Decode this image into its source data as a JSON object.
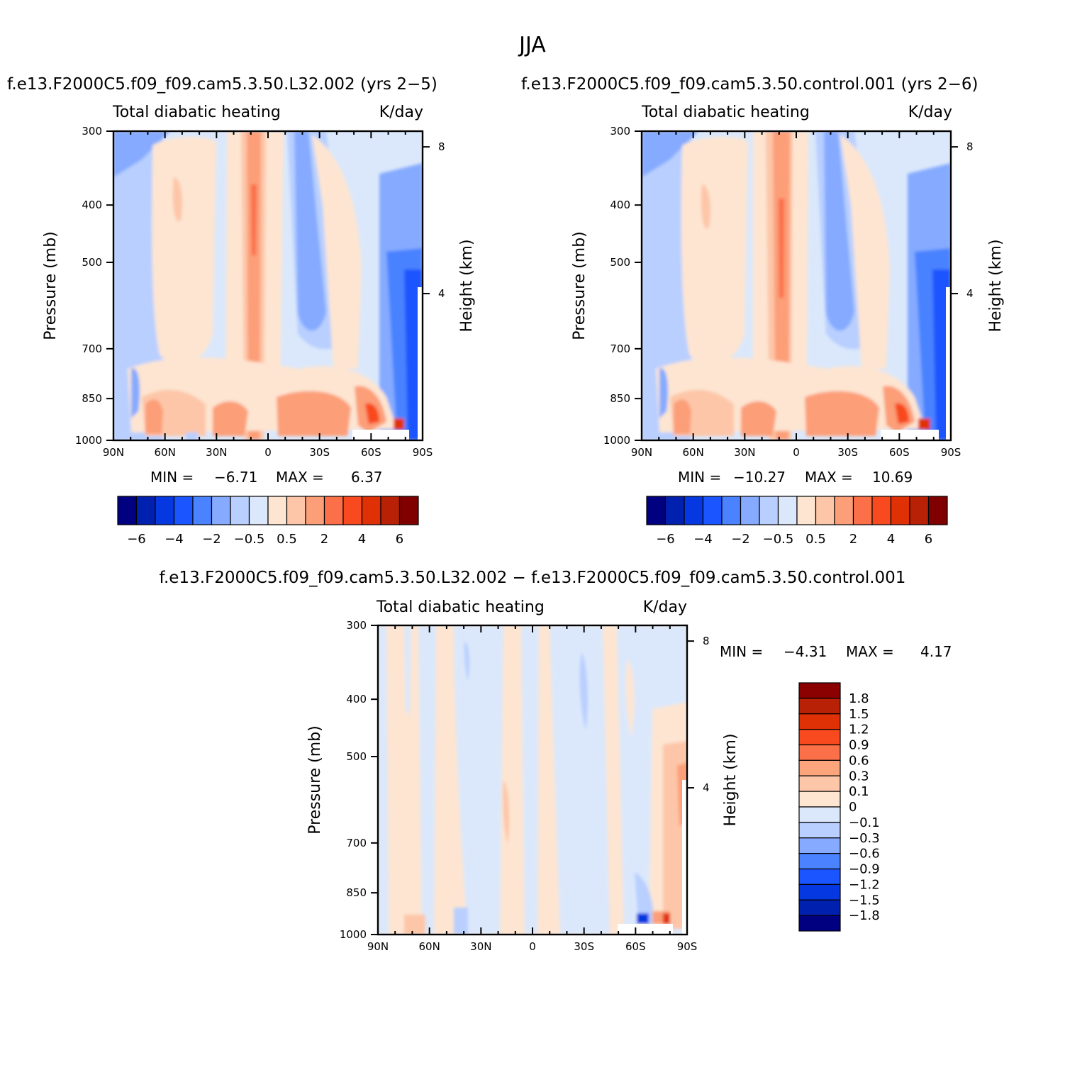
{
  "title": "JJA",
  "panels": [
    {
      "id": "a",
      "title": "f.e13.F2000C5.f09_f09.cam5.3.50.L32.002 (yrs 2−5)",
      "left_label": "Total diabatic heating",
      "right_label": "K/day",
      "ylabel": "Pressure (mb)",
      "ylabel2": "Height (km)",
      "min_label": "MIN =",
      "min_value": "−6.71",
      "max_label": "MAX =",
      "max_value": "6.37"
    },
    {
      "id": "b",
      "title": "f.e13.F2000C5.f09_f09.cam5.3.50.control.001 (yrs 2−6)",
      "left_label": "Total diabatic heating",
      "right_label": "K/day",
      "ylabel": "Pressure (mb)",
      "ylabel2": "Height (km)",
      "min_label": "MIN =",
      "min_value": "−10.27",
      "max_label": "MAX =",
      "max_value": "10.69"
    },
    {
      "id": "c",
      "title": "f.e13.F2000C5.f09_f09.cam5.3.50.L32.002 − f.e13.F2000C5.f09_f09.cam5.3.50.control.001",
      "left_label": "Total diabatic heating",
      "right_label": "K/day",
      "ylabel": "Pressure (mb)",
      "ylabel2": "Height (km)",
      "min_label": "MIN =",
      "min_value": "−4.31",
      "max_label": "MAX =",
      "max_value": "4.17"
    }
  ],
  "chart_data": [
    {
      "type": "heatmap",
      "title": "f.e13.F2000C5.f09_f09.cam5.3.50.L32.002 (yrs 2−5)",
      "x_ticks": [
        "90N",
        "60N",
        "30N",
        "0",
        "30S",
        "60S",
        "90S"
      ],
      "y_ticks": [
        "300",
        "400",
        "500",
        "700",
        "850",
        "1000"
      ],
      "y_tick_values": [
        300,
        400,
        500,
        700,
        850,
        1000
      ],
      "y_log": true,
      "y2_ticks": [
        "8",
        "4"
      ],
      "y2_tick_values": [
        8,
        4
      ],
      "ylim": [
        1000,
        300
      ],
      "xlim": [
        "90N",
        "90S"
      ],
      "colorbar": {
        "orientation": "horizontal",
        "labels": [
          "−6",
          "−4",
          "−2",
          "−0.5",
          "0.5",
          "2",
          "4",
          "6"
        ],
        "colors": [
          "#000080",
          "#0020b0",
          "#0538e0",
          "#1a55ff",
          "#4a82ff",
          "#85aaff",
          "#b8cfff",
          "#dbe8fb",
          "#fde5d2",
          "#fdc6a8",
          "#fc9e78",
          "#fb7048",
          "#f84a1e",
          "#e03005",
          "#b82105",
          "#800000"
        ]
      }
    },
    {
      "type": "heatmap",
      "title": "f.e13.F2000C5.f09_f09.cam5.3.50.control.001 (yrs 2−6)",
      "x_ticks": [
        "90N",
        "60N",
        "30N",
        "0",
        "30S",
        "60S",
        "90S"
      ],
      "y_ticks": [
        "300",
        "400",
        "500",
        "700",
        "850",
        "1000"
      ],
      "y_tick_values": [
        300,
        400,
        500,
        700,
        850,
        1000
      ],
      "y_log": true,
      "y2_ticks": [
        "8",
        "4"
      ],
      "y2_tick_values": [
        8,
        4
      ],
      "ylim": [
        1000,
        300
      ],
      "xlim": [
        "90N",
        "90S"
      ],
      "colorbar": {
        "orientation": "horizontal",
        "labels": [
          "−6",
          "−4",
          "−2",
          "−0.5",
          "0.5",
          "2",
          "4",
          "6"
        ],
        "colors": [
          "#000080",
          "#0020b0",
          "#0538e0",
          "#1a55ff",
          "#4a82ff",
          "#85aaff",
          "#b8cfff",
          "#dbe8fb",
          "#fde5d2",
          "#fdc6a8",
          "#fc9e78",
          "#fb7048",
          "#f84a1e",
          "#e03005",
          "#b82105",
          "#800000"
        ]
      }
    },
    {
      "type": "heatmap",
      "title": "f.e13.F2000C5.f09_f09.cam5.3.50.L32.002 − f.e13.F2000C5.f09_f09.cam5.3.50.control.001",
      "x_ticks": [
        "90N",
        "60N",
        "30N",
        "0",
        "30S",
        "60S",
        "90S"
      ],
      "y_ticks": [
        "300",
        "400",
        "500",
        "700",
        "850",
        "1000"
      ],
      "y_tick_values": [
        300,
        400,
        500,
        700,
        850,
        1000
      ],
      "y_log": true,
      "y2_ticks": [
        "8",
        "4"
      ],
      "y2_tick_values": [
        8,
        4
      ],
      "ylim": [
        1000,
        300
      ],
      "xlim": [
        "90N",
        "90S"
      ],
      "colorbar": {
        "orientation": "vertical",
        "labels": [
          "1.8",
          "1.5",
          "1.2",
          "0.9",
          "0.6",
          "0.3",
          "0.1",
          "0",
          "−0.1",
          "−0.3",
          "−0.6",
          "−0.9",
          "−1.2",
          "−1.5",
          "−1.8"
        ],
        "colors": [
          "#8b0000",
          "#b82105",
          "#e03005",
          "#f84a1e",
          "#fb7048",
          "#fca47c",
          "#fdc6a8",
          "#fde5d2",
          "#dbe8fb",
          "#b8cfff",
          "#85aaff",
          "#4a82ff",
          "#1a55ff",
          "#0538e0",
          "#0020b0",
          "#000080"
        ]
      }
    }
  ]
}
